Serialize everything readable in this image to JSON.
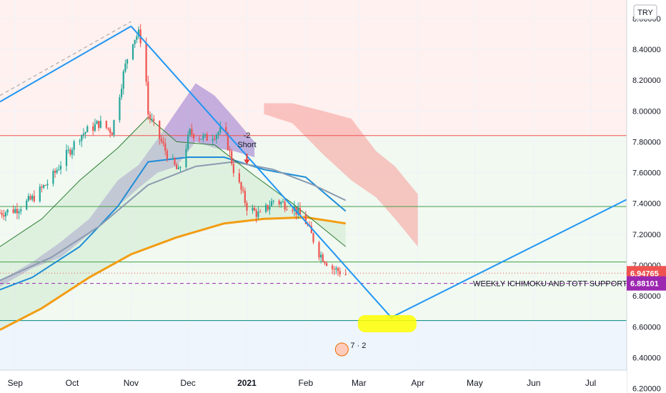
{
  "chart_data": {
    "type": "candlestick",
    "symbol_currency": "TRY",
    "y_axis": {
      "ylim": [
        6.17,
        8.72
      ],
      "ticks": [
        "8.60000",
        "8.40000",
        "8.20000",
        "8.00000",
        "7.80000",
        "7.60000",
        "7.40000",
        "7.20000",
        "7.00000",
        "6.80000",
        "6.60000",
        "6.40000",
        "6.20000"
      ]
    },
    "x_axis": {
      "start": "2020-08-24",
      "end": "2021-07-20",
      "ticks": [
        {
          "label": "Sep",
          "date": "2020-09-01",
          "bold": false
        },
        {
          "label": "Oct",
          "date": "2020-10-01",
          "bold": false
        },
        {
          "label": "Nov",
          "date": "2020-11-01",
          "bold": false
        },
        {
          "label": "Dec",
          "date": "2020-12-01",
          "bold": false
        },
        {
          "label": "2021",
          "date": "2021-01-01",
          "bold": true
        },
        {
          "label": "Feb",
          "date": "2021-02-01",
          "bold": false
        },
        {
          "label": "Mar",
          "date": "2021-03-01",
          "bold": false
        },
        {
          "label": "Apr",
          "date": "2021-04-01",
          "bold": false
        },
        {
          "label": "May",
          "date": "2021-05-01",
          "bold": false
        },
        {
          "label": "Jun",
          "date": "2021-06-01",
          "bold": false
        },
        {
          "label": "Jul",
          "date": "2021-07-01",
          "bold": false
        }
      ]
    },
    "price_labels": [
      {
        "value": 6.94765,
        "text": "6.94765",
        "color": "#ef5350"
      },
      {
        "value": 6.88101,
        "text": "6.88101",
        "color": "#9c27b0"
      }
    ],
    "price_waypoints": [
      [
        "2020-08-24",
        7.34
      ],
      [
        "2020-09-01",
        7.36
      ],
      [
        "2020-09-10",
        7.43
      ],
      [
        "2020-09-20",
        7.56
      ],
      [
        "2020-09-25",
        7.66
      ],
      [
        "2020-10-05",
        7.84
      ],
      [
        "2020-10-15",
        7.92
      ],
      [
        "2020-10-22",
        7.87
      ],
      [
        "2020-10-28",
        8.24
      ],
      [
        "2020-11-01",
        8.45
      ],
      [
        "2020-11-05",
        8.5
      ],
      [
        "2020-11-08",
        8.4
      ],
      [
        "2020-11-10",
        7.98
      ],
      [
        "2020-11-20",
        7.72
      ],
      [
        "2020-11-26",
        7.6
      ],
      [
        "2020-12-02",
        7.86
      ],
      [
        "2020-12-10",
        7.82
      ],
      [
        "2020-12-20",
        7.88
      ],
      [
        "2020-12-25",
        7.62
      ],
      [
        "2021-01-01",
        7.38
      ],
      [
        "2021-01-08",
        7.32
      ],
      [
        "2021-01-15",
        7.42
      ],
      [
        "2021-01-25",
        7.38
      ],
      [
        "2021-02-01",
        7.28
      ],
      [
        "2021-02-08",
        7.08
      ],
      [
        "2021-02-15",
        6.98
      ],
      [
        "2021-02-22",
        6.94
      ]
    ],
    "moving_averages": [
      {
        "color": "#f39c12",
        "width": 3,
        "points": [
          [
            "2020-08-24",
            6.58
          ],
          [
            "2020-09-15",
            6.72
          ],
          [
            "2020-10-10",
            6.92
          ],
          [
            "2020-11-01",
            7.07
          ],
          [
            "2020-11-25",
            7.18
          ],
          [
            "2020-12-20",
            7.27
          ],
          [
            "2021-01-10",
            7.3
          ],
          [
            "2021-02-01",
            7.31
          ],
          [
            "2021-02-22",
            7.27
          ]
        ]
      },
      {
        "color": "#1f8dd6",
        "width": 2,
        "points": [
          [
            "2020-08-24",
            6.84
          ],
          [
            "2020-09-10",
            6.92
          ],
          [
            "2020-10-05",
            7.12
          ],
          [
            "2020-10-25",
            7.38
          ],
          [
            "2020-11-10",
            7.67
          ],
          [
            "2020-12-01",
            7.7
          ],
          [
            "2020-12-20",
            7.7
          ],
          [
            "2021-01-10",
            7.62
          ],
          [
            "2021-02-01",
            7.57
          ],
          [
            "2021-02-22",
            7.35
          ]
        ]
      },
      {
        "color": "#8a9bb0",
        "width": 2,
        "points": [
          [
            "2020-08-24",
            6.9
          ],
          [
            "2020-09-20",
            7.05
          ],
          [
            "2020-10-15",
            7.25
          ],
          [
            "2020-11-10",
            7.52
          ],
          [
            "2020-12-05",
            7.64
          ],
          [
            "2020-12-25",
            7.67
          ],
          [
            "2021-01-15",
            7.62
          ],
          [
            "2021-02-05",
            7.52
          ],
          [
            "2021-02-22",
            7.42
          ]
        ]
      },
      {
        "color": "#2e7d32",
        "width": 1,
        "points": [
          [
            "2020-08-24",
            7.12
          ],
          [
            "2020-09-15",
            7.3
          ],
          [
            "2020-10-05",
            7.55
          ],
          [
            "2020-10-25",
            7.76
          ],
          [
            "2020-11-10",
            7.96
          ],
          [
            "2020-11-25",
            7.8
          ],
          [
            "2020-12-15",
            7.78
          ],
          [
            "2021-01-05",
            7.58
          ],
          [
            "2021-01-25",
            7.4
          ],
          [
            "2021-02-22",
            7.12
          ]
        ]
      }
    ],
    "ichimoku_cloud_past": [
      [
        "2020-08-24",
        6.86,
        6.9
      ],
      [
        "2020-09-10",
        6.98,
        7.02
      ],
      [
        "2020-09-25",
        7.05,
        7.15
      ],
      [
        "2020-10-10",
        7.2,
        7.3
      ],
      [
        "2020-10-25",
        7.38,
        7.55
      ],
      [
        "2020-11-05",
        7.5,
        7.65
      ],
      [
        "2020-11-15",
        7.6,
        7.82
      ],
      [
        "2020-11-25",
        7.64,
        8.0
      ],
      [
        "2020-12-05",
        7.8,
        8.18
      ],
      [
        "2020-12-15",
        7.76,
        8.1
      ],
      [
        "2020-12-25",
        7.74,
        7.96
      ],
      [
        "2021-01-05",
        7.7,
        7.8
      ]
    ],
    "ichimoku_cloud_future": [
      [
        "2021-01-10",
        7.98,
        8.05
      ],
      [
        "2021-01-25",
        7.92,
        8.05
      ],
      [
        "2021-02-10",
        7.72,
        8.0
      ],
      [
        "2021-02-25",
        7.55,
        7.95
      ],
      [
        "2021-03-10",
        7.44,
        7.74
      ],
      [
        "2021-03-20",
        7.3,
        7.64
      ],
      [
        "2021-04-01",
        7.12,
        7.46
      ]
    ],
    "horizontal_lines": [
      {
        "value": 7.84,
        "color": "#ef5350",
        "dash": false
      },
      {
        "value": 7.38,
        "color": "#43a047",
        "dash": false
      },
      {
        "value": 7.02,
        "color": "#43a047",
        "dash": false
      },
      {
        "value": 6.88101,
        "color": "#9c27b0",
        "dash": true
      },
      {
        "value": 6.64,
        "color": "#00897b",
        "dash": false
      }
    ],
    "trendlines": [
      {
        "color": "#2196f3",
        "width": 2,
        "dash": false,
        "points": [
          [
            "2020-08-24",
            8.06
          ],
          [
            "2020-11-01",
            8.55
          ]
        ]
      },
      {
        "color": "#2196f3",
        "width": 2,
        "dash": false,
        "points": [
          [
            "2020-11-01",
            8.55
          ],
          [
            "2021-03-18",
            6.66
          ],
          [
            "2021-07-24",
            7.45
          ]
        ]
      },
      {
        "color": "#9e9e9e",
        "width": 1,
        "dash": true,
        "points": [
          [
            "2020-08-24",
            8.1
          ],
          [
            "2020-11-01",
            8.58
          ]
        ]
      }
    ],
    "annotations": {
      "signal_count": "-2",
      "signal_label": "Short",
      "signal_date": "2021-01-01",
      "signal_value": 7.75,
      "support_text": "WEEKLY ICHIMOKU AND TOTT SUPPORT",
      "target_date": "2021-03-14",
      "target_value": 6.62,
      "event_label": "7 · 2",
      "event_date": "2021-02-20"
    }
  }
}
